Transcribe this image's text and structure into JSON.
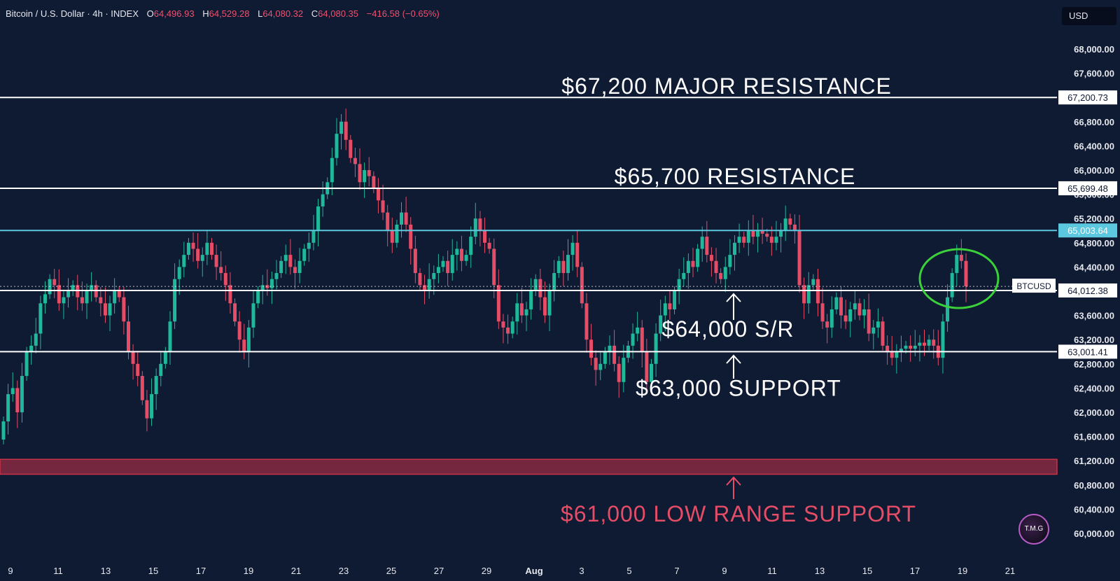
{
  "header": {
    "symbol": "Bitcoin / U.S. Dollar · 4h · INDEX",
    "open_label": "O",
    "open": "64,496.93",
    "high_label": "H",
    "high": "64,529.28",
    "low_label": "L",
    "low": "64,080.32",
    "close_label": "C",
    "close": "64,080.35",
    "change": "−416.58 (−0.65%)"
  },
  "currency_button": "USD",
  "logo_text": "T.M.G",
  "colors": {
    "background": "#0f1a33",
    "up": "#1fb89a",
    "down": "#e54d67",
    "level_line": "#ffffff",
    "highlight_line": "#5cc8e0",
    "support_zone": "#c93348",
    "circle": "#3ad13a"
  },
  "chart_data": {
    "type": "candlestick",
    "y_range": [
      59900,
      68250
    ],
    "y_ticks": [
      "68,000.00",
      "67,600.00",
      "67,200.00",
      "66,800.00",
      "66,400.00",
      "66,000.00",
      "65,600.00",
      "65,200.00",
      "64,800.00",
      "64,400.00",
      "64,000.00",
      "63,600.00",
      "63,200.00",
      "62,800.00",
      "62,400.00",
      "62,000.00",
      "61,600.00",
      "61,200.00",
      "60,800.00",
      "60,400.00",
      "60,000.00"
    ],
    "x_ticks": [
      "9",
      "11",
      "13",
      "15",
      "17",
      "19",
      "21",
      "23",
      "25",
      "27",
      "29",
      "Aug",
      "3",
      "5",
      "7",
      "9",
      "11",
      "13",
      "15",
      "17",
      "19",
      "21"
    ],
    "closes": [
      61850,
      62300,
      62400,
      62000,
      62600,
      63000,
      63100,
      63300,
      63800,
      63950,
      64200,
      64100,
      63800,
      63900,
      64000,
      64100,
      63900,
      63800,
      64000,
      64100,
      63900,
      63800,
      63600,
      63800,
      64000,
      63900,
      63500,
      63000,
      62800,
      62600,
      62200,
      61900,
      62300,
      62600,
      62800,
      63000,
      63500,
      64200,
      64400,
      64600,
      64800,
      64700,
      64500,
      64600,
      64800,
      64600,
      64400,
      64300,
      64100,
      63800,
      63500,
      63200,
      63000,
      63400,
      63800,
      64000,
      64100,
      64050,
      64200,
      64300,
      64500,
      64600,
      64400,
      64300,
      64500,
      64700,
      64800,
      65000,
      65400,
      65600,
      65800,
      66200,
      66600,
      66800,
      66500,
      66200,
      66100,
      65800,
      66000,
      65900,
      65700,
      65500,
      65300,
      65000,
      64800,
      65100,
      65300,
      65100,
      64700,
      64300,
      64100,
      64000,
      64200,
      64300,
      64400,
      64500,
      64300,
      64600,
      64700,
      64500,
      64600,
      64900,
      65200,
      65000,
      64800,
      64700,
      64100,
      63500,
      63400,
      63300,
      63500,
      63800,
      63600,
      63700,
      64000,
      64200,
      63900,
      63600,
      64000,
      64300,
      64500,
      64300,
      64600,
      64800,
      64400,
      63800,
      63200,
      62900,
      62700,
      62800,
      63000,
      63100,
      62800,
      62500,
      62900,
      63100,
      63300,
      63400,
      63000,
      62500,
      62800,
      63300,
      63600,
      63800,
      63700,
      64000,
      64200,
      64300,
      64500,
      64400,
      64700,
      64900,
      64600,
      64500,
      64300,
      64200,
      64400,
      64600,
      64800,
      64900,
      64800,
      65000,
      64900,
      65000,
      64950,
      64900,
      64800,
      64900,
      65000,
      65200,
      65100,
      65000,
      64100,
      63800,
      64100,
      64200,
      63800,
      63500,
      63400,
      63700,
      63900,
      63600,
      63500,
      63700,
      63800,
      63600,
      63700,
      63300,
      63400,
      63500,
      63100,
      63000,
      62900,
      63000,
      63050,
      63100,
      63050,
      63100,
      63150,
      63100,
      63200,
      63100,
      62900,
      63500,
      63900,
      64300,
      64600,
      64500,
      64080
    ],
    "levels": [
      {
        "label": "$67,200 MAJOR RESISTANCE",
        "value": 67200,
        "tag": "67,200.73"
      },
      {
        "label": "$65,700 RESISTANCE",
        "value": 65700,
        "tag": "65,699.48"
      },
      {
        "label": "",
        "value": 65003,
        "tag": "65,003.64"
      },
      {
        "label": "$64,000 S/R",
        "value": 64012,
        "tag": "64,012.38"
      },
      {
        "label": "$63,000 SUPPORT",
        "value": 63001,
        "tag": "63,001.41"
      }
    ],
    "symbol_tag": "BTCUSD",
    "support_zone": {
      "label": "$61,000 LOW RANGE SUPPORT",
      "low": 61000,
      "high": 61200
    },
    "circle_note": "highlight around latest candles"
  }
}
